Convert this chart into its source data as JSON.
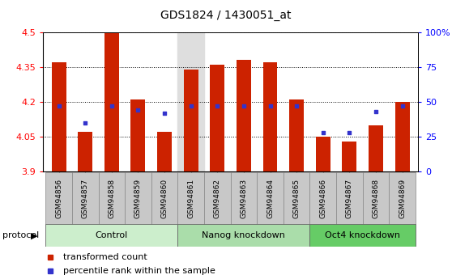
{
  "title": "GDS1824 / 1430051_at",
  "samples": [
    "GSM94856",
    "GSM94857",
    "GSM94858",
    "GSM94859",
    "GSM94860",
    "GSM94861",
    "GSM94862",
    "GSM94863",
    "GSM94864",
    "GSM94865",
    "GSM94866",
    "GSM94867",
    "GSM94868",
    "GSM94869"
  ],
  "transformed_count": [
    4.37,
    4.07,
    4.5,
    4.21,
    4.07,
    4.34,
    4.36,
    4.38,
    4.37,
    4.21,
    4.05,
    4.03,
    4.1,
    4.2
  ],
  "percentile_rank": [
    47,
    35,
    47,
    44,
    42,
    47,
    47,
    47,
    47,
    47,
    28,
    28,
    43,
    47
  ],
  "ylim_left": [
    3.9,
    4.5
  ],
  "ylim_right": [
    0,
    100
  ],
  "yticks_left": [
    3.9,
    4.05,
    4.2,
    4.35,
    4.5
  ],
  "yticks_right": [
    0,
    25,
    50,
    75,
    100
  ],
  "bar_color": "#CC2200",
  "dot_color": "#3333CC",
  "bar_width": 0.55,
  "groups": [
    {
      "label": "Control",
      "start": 0,
      "end": 5,
      "color": "#CCEECC"
    },
    {
      "label": "Nanog knockdown",
      "start": 5,
      "end": 10,
      "color": "#AADDAA"
    },
    {
      "label": "Oct4 knockdown",
      "start": 10,
      "end": 14,
      "color": "#77CC77"
    }
  ],
  "highlight_col": 5,
  "highlight_color": "#DEDEDE",
  "tick_bg_color": "#C8C8C8",
  "protocol_label": "protocol",
  "legend_red": "transformed count",
  "legend_blue": "percentile rank within the sample",
  "title_fontsize": 10,
  "tick_fontsize": 6.5,
  "axis_fontsize": 8,
  "group_fontsize": 8
}
